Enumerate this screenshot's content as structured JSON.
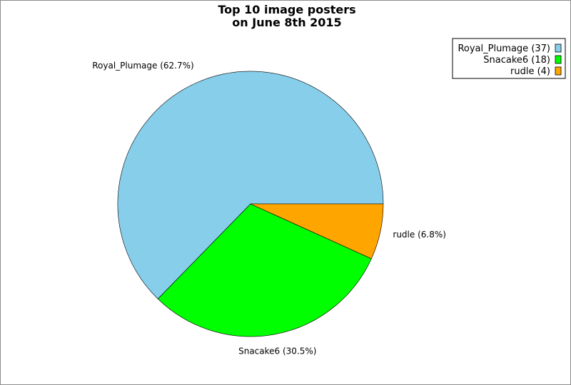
{
  "chart_data": {
    "type": "pie",
    "title_lines": [
      "Top 10 image posters",
      "on June 8th 2015"
    ],
    "slices": [
      {
        "name": "Royal_Plumage",
        "value": 37,
        "percent_label": "Royal_Plumage (62.7%)",
        "legend_label": "Royal_Plumage (37)",
        "color": "#87CEEB"
      },
      {
        "name": "Snacake6",
        "value": 18,
        "percent_label": "Snacake6 (30.5%)",
        "legend_label": "Snacake6 (18)",
        "color": "#00FF00"
      },
      {
        "name": "rudle",
        "value": 4,
        "percent_label": "rudle (6.8%)",
        "legend_label": "rudle (4)",
        "color": "#FFA500"
      }
    ],
    "legend_position": "top-right",
    "start_angle_deg": 0,
    "direction": "counterclockwise"
  }
}
